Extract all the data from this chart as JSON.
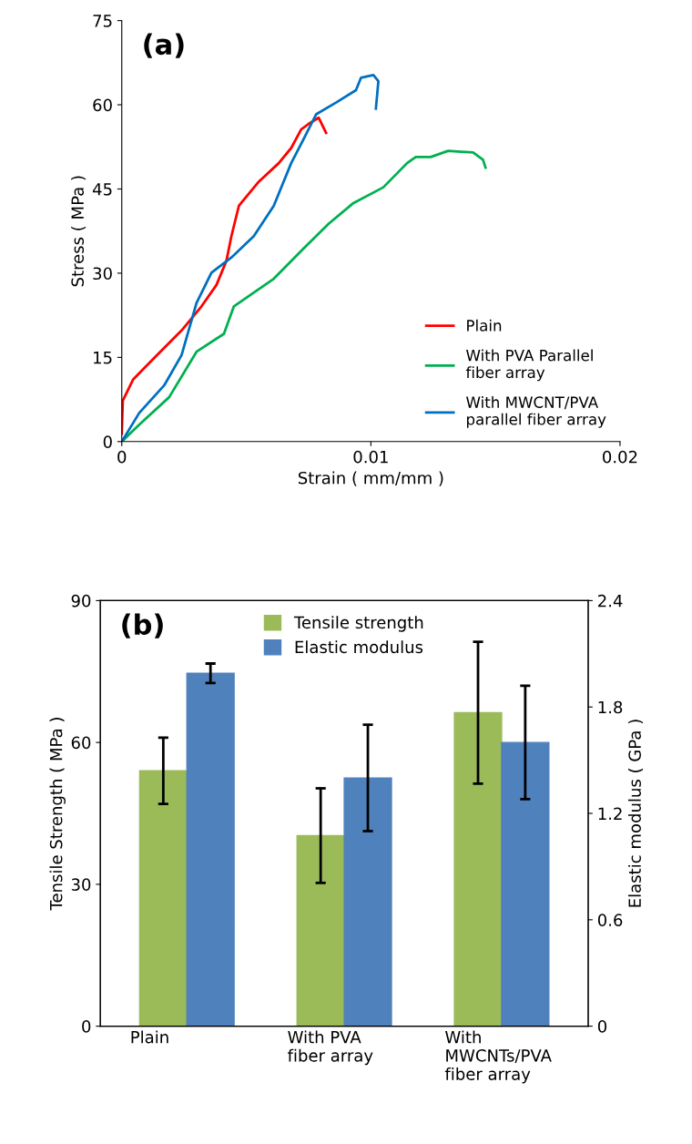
{
  "chart_data": [
    {
      "type": "line",
      "xlabel": "Strain ( mm/mm )",
      "ylabel": "Stress ( MPa )",
      "annotations": [
        "(a)"
      ],
      "xlim": [
        0,
        0.02
      ],
      "xticks": [
        0,
        0.01,
        0.02
      ],
      "ylim": [
        0,
        75
      ],
      "yticks": [
        0,
        15,
        30,
        45,
        60,
        75
      ],
      "grid": false,
      "legend": "bottom right",
      "line_style": "solid",
      "marker": "none",
      "series": [
        {
          "name": "Plain",
          "color": "#ff0000",
          "x": [
            0,
            4e-05,
            0.00046,
            0.0013,
            0.0024,
            0.0032,
            0.0038,
            0.0042,
            0.0044,
            0.0047,
            0.0055,
            0.0063,
            0.0068,
            0.0072,
            0.0075,
            0.0079,
            0.0082
          ],
          "values": [
            1.4,
            7.3,
            11.1,
            14.9,
            19.8,
            24.1,
            27.9,
            32.2,
            36.6,
            42,
            46.3,
            49.6,
            52.3,
            55.6,
            56.6,
            57.7,
            55
          ]
        },
        {
          "name": "With PVA Parallel\nfiber array",
          "color": "#00b050",
          "x": [
            0,
            0.0007,
            0.0019,
            0.003,
            0.0041,
            0.0045,
            0.0061,
            0.0073,
            0.0083,
            0.0093,
            0.0105,
            0.01145,
            0.0118,
            0.0124,
            0.0131,
            0.0141,
            0.0145,
            0.0146
          ],
          "values": [
            0,
            3,
            7.9,
            16,
            19.2,
            24.1,
            29,
            34.4,
            38.8,
            42.5,
            45.3,
            49.6,
            50.7,
            50.7,
            51.8,
            51.5,
            50.2,
            48.8
          ]
        },
        {
          "name": "With MWCNT/PVA\nparallel fiber array",
          "color": "#0070c0",
          "x": [
            0,
            0.0007,
            0.0017,
            0.0024,
            0.003,
            0.0036,
            0.0044,
            0.0053,
            0.0061,
            0.0068,
            0.0073,
            0.0078,
            0.0086,
            0.0094,
            0.0096,
            0.0101,
            0.0103,
            0.0102
          ],
          "values": [
            0,
            5.1,
            10,
            15.4,
            24.7,
            30.1,
            32.8,
            36.6,
            42,
            49.6,
            53.9,
            58.3,
            60.4,
            62.6,
            64.8,
            65.3,
            64.2,
            59.3
          ]
        }
      ]
    },
    {
      "type": "bar",
      "ylabel": "Tensile Strength ( MPa )",
      "y2label": "Elastic modulus ( GPa )",
      "annotations": [
        "(b)"
      ],
      "categories": [
        "Plain",
        "With PVA\nfiber array",
        "With\nMWCNTs/PVA\nfiber array"
      ],
      "ylim": [
        0,
        90
      ],
      "yticks": [
        0,
        30,
        60,
        90
      ],
      "y2lim": [
        0,
        2.4
      ],
      "y2ticks": [
        0,
        0.6,
        1.2,
        1.8,
        2.4
      ],
      "grid": false,
      "legend": "top",
      "series": [
        {
          "name": "Tensile strength",
          "color": "#9bbb59",
          "values": [
            54,
            40.3,
            66.3
          ],
          "errors": [
            7,
            10,
            15
          ]
        },
        {
          "name": "Elastic modulus",
          "color": "#4f81bd",
          "axis": "y2",
          "values": [
            1.99,
            1.4,
            1.6
          ],
          "errors": [
            0.055,
            0.3,
            0.32
          ]
        }
      ]
    }
  ]
}
